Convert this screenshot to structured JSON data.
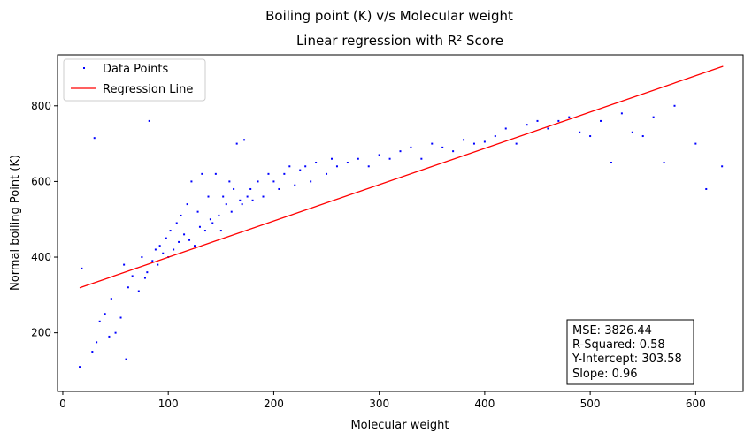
{
  "chart_data": {
    "type": "scatter",
    "suptitle": "Boiling point (K) v/s Molecular weight",
    "title": "Linear regression with R² Score",
    "xlabel": "Molecular weight",
    "ylabel": "Normal boiling Point (K)",
    "xlim": [
      -5,
      645
    ],
    "ylim": [
      45,
      935
    ],
    "xticks": [
      0,
      100,
      200,
      300,
      400,
      500,
      600
    ],
    "yticks": [
      200,
      400,
      600,
      800
    ],
    "legend": {
      "placement": "top-left",
      "entries": [
        "Data Points",
        "Regression Line"
      ]
    },
    "series": [
      {
        "name": "Data Points",
        "kind": "scatter",
        "color": "#0000ff",
        "note_points": "approximately 4000 scattered points; main cloud along a rising trend from (20,100–350) to (380,700), with sparse outliers",
        "x": [
          16,
          18,
          28,
          30,
          32,
          35,
          40,
          44,
          46,
          50,
          55,
          58,
          60,
          62,
          66,
          70,
          72,
          75,
          78,
          80,
          82,
          85,
          88,
          90,
          92,
          95,
          98,
          100,
          102,
          105,
          108,
          110,
          112,
          115,
          118,
          120,
          122,
          125,
          128,
          130,
          132,
          135,
          138,
          140,
          142,
          145,
          148,
          150,
          152,
          155,
          158,
          160,
          162,
          165,
          168,
          170,
          172,
          175,
          178,
          180,
          185,
          190,
          195,
          200,
          205,
          210,
          215,
          220,
          225,
          230,
          235,
          240,
          250,
          255,
          260,
          270,
          280,
          290,
          300,
          310,
          320,
          330,
          340,
          350,
          360,
          370,
          380,
          390,
          400,
          410,
          420,
          430,
          440,
          450,
          460,
          470,
          480,
          490,
          500,
          510,
          520,
          530,
          540,
          550,
          560,
          570,
          580,
          600,
          610,
          625
        ],
        "y": [
          110,
          370,
          150,
          715,
          175,
          230,
          250,
          190,
          290,
          200,
          240,
          380,
          130,
          320,
          350,
          370,
          310,
          400,
          345,
          360,
          760,
          390,
          420,
          380,
          430,
          410,
          450,
          400,
          470,
          420,
          490,
          440,
          510,
          460,
          540,
          445,
          600,
          430,
          520,
          480,
          620,
          470,
          560,
          500,
          490,
          620,
          510,
          470,
          560,
          540,
          600,
          520,
          580,
          700,
          550,
          540,
          710,
          560,
          580,
          550,
          600,
          560,
          620,
          600,
          580,
          620,
          640,
          590,
          630,
          640,
          600,
          650,
          620,
          660,
          640,
          650,
          660,
          640,
          670,
          660,
          680,
          690,
          660,
          700,
          690,
          680,
          710,
          700,
          705,
          720,
          740,
          700,
          750,
          760,
          740,
          760,
          770,
          730,
          720,
          760,
          650,
          780,
          730,
          720,
          770,
          650,
          800,
          700,
          580,
          640
        ]
      },
      {
        "name": "Regression Line",
        "kind": "line",
        "color": "#ff0000",
        "x": [
          16,
          626
        ],
        "y": [
          318.94,
          904.54
        ]
      }
    ],
    "annotation": {
      "placement": "bottom-right",
      "lines": [
        "MSE: 3826.44",
        "R-Squared: 0.58",
        "Y-Intercept: 303.58",
        "Slope: 0.96"
      ]
    }
  }
}
